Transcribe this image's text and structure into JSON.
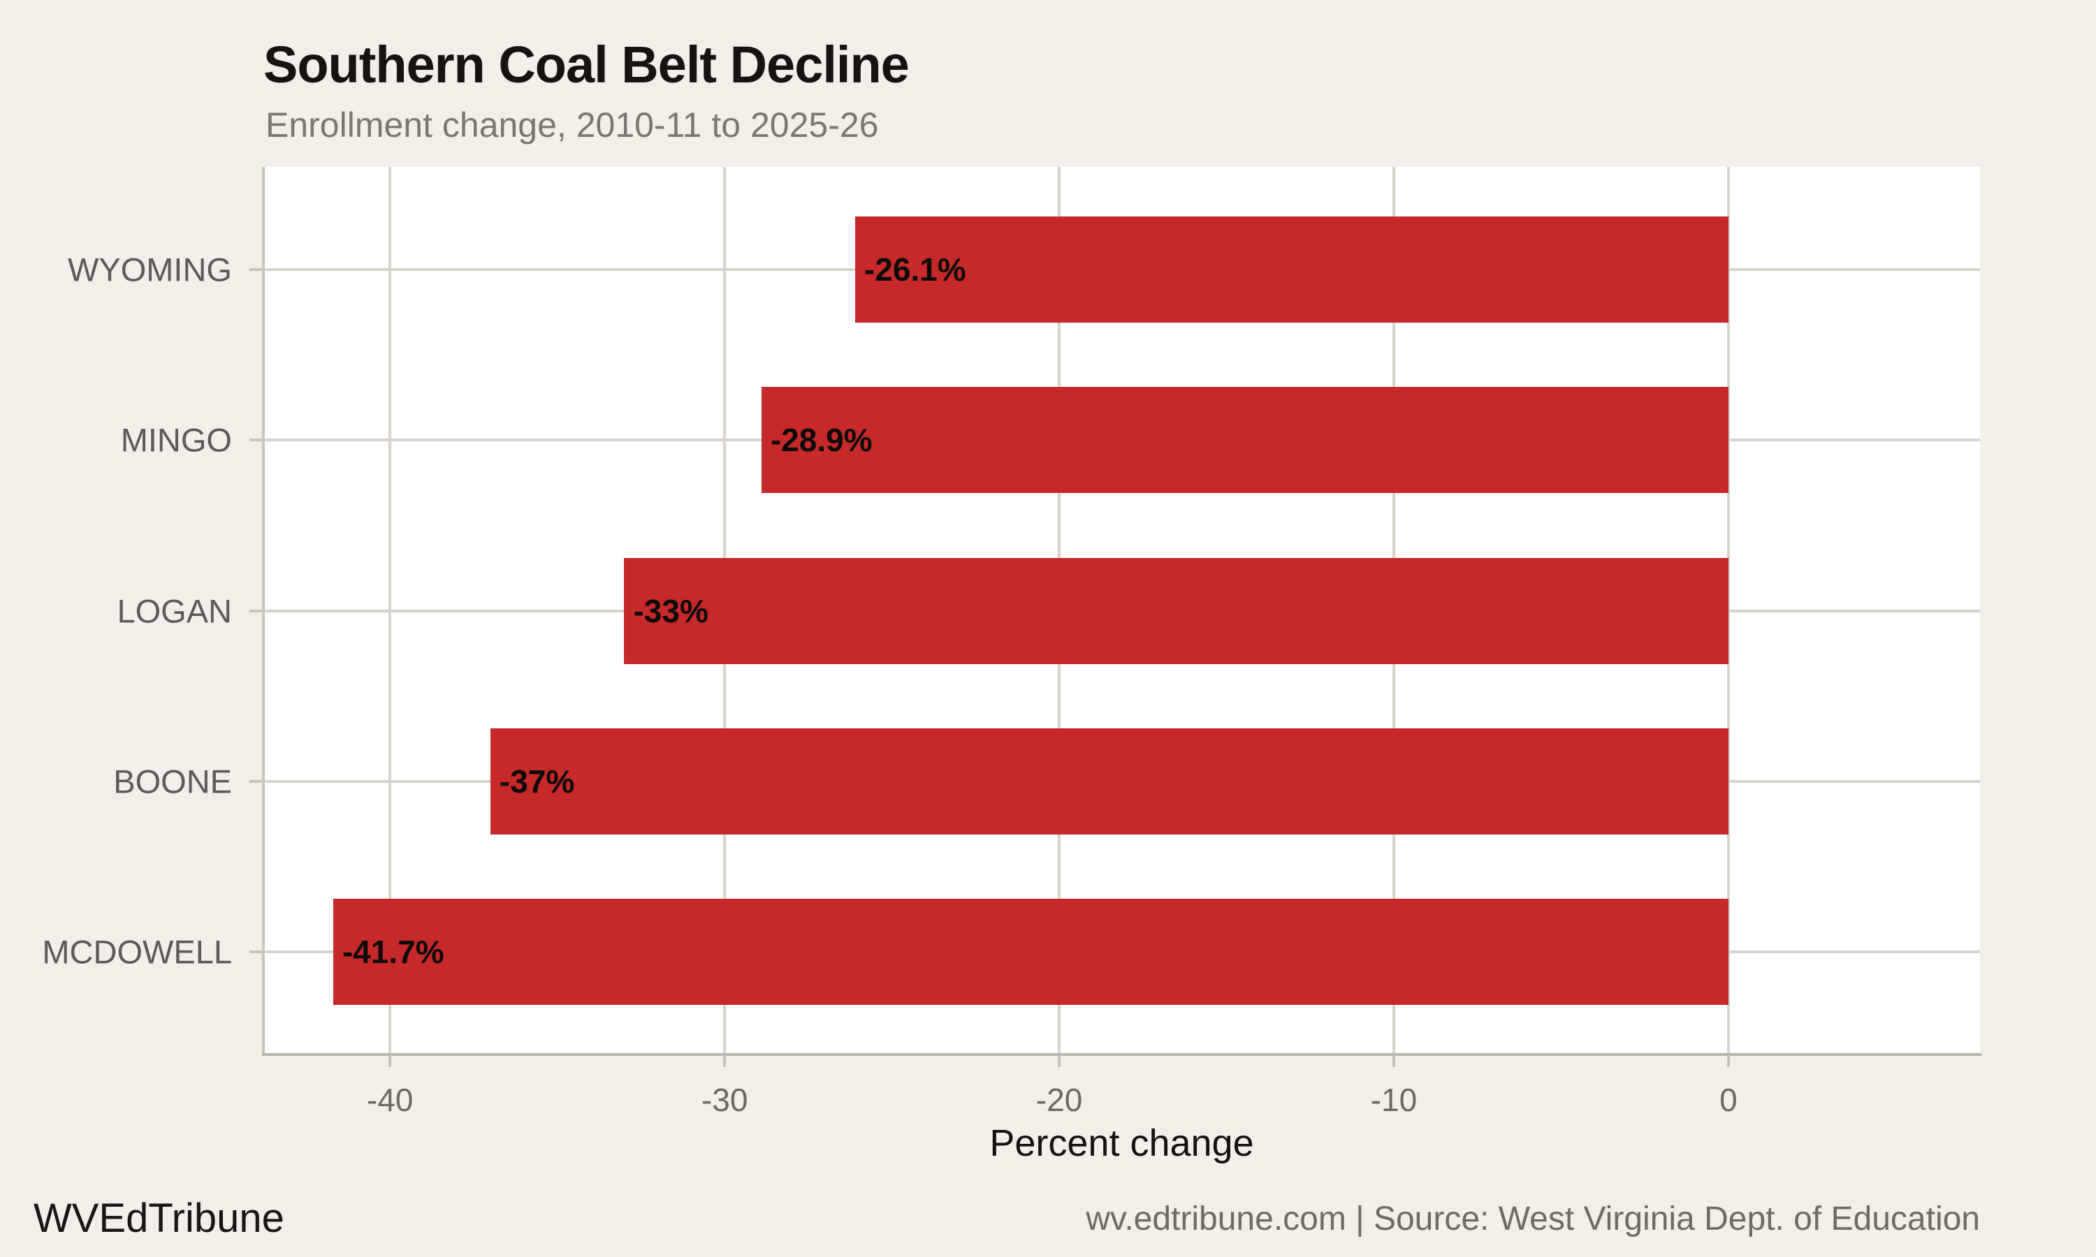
{
  "header": {
    "title": "Southern Coal Belt Decline",
    "subtitle": "Enrollment change, 2010-11 to 2025-26"
  },
  "chart_data": {
    "type": "bar",
    "orientation": "horizontal",
    "title": "Southern Coal Belt Decline",
    "subtitle": "Enrollment change, 2010-11 to 2025-26",
    "categories": [
      "WYOMING",
      "MINGO",
      "LOGAN",
      "BOONE",
      "MCDOWELL"
    ],
    "values": [
      -26.1,
      -28.9,
      -33,
      -37,
      -41.7
    ],
    "bar_labels": [
      "-26.1%",
      "-28.9%",
      "-33%",
      "-37%",
      "-41.7%"
    ],
    "xlabel": "Percent change",
    "ylabel": "",
    "xticks": [
      -40,
      -30,
      -20,
      -10,
      0
    ],
    "xtick_labels": [
      "-40",
      "-30",
      "-20",
      "-10",
      "0"
    ],
    "xlim": [
      -43.785,
      7.52
    ],
    "grid": "major-only",
    "legend": "none",
    "colors": {
      "bar": "#C7282A",
      "background": "#F2EFE9",
      "panel": "#FFFFFF",
      "grid": "#D8D3CB",
      "axis_line": "#B9B4AC",
      "category_text": "#5E5A55",
      "tick_text": "#6D6862",
      "value_text": "#0D0B09"
    }
  },
  "footer": {
    "brand": "WVEdTribune",
    "source_line": "wv.edtribune.com | Source: West Virginia Dept. of Education"
  }
}
